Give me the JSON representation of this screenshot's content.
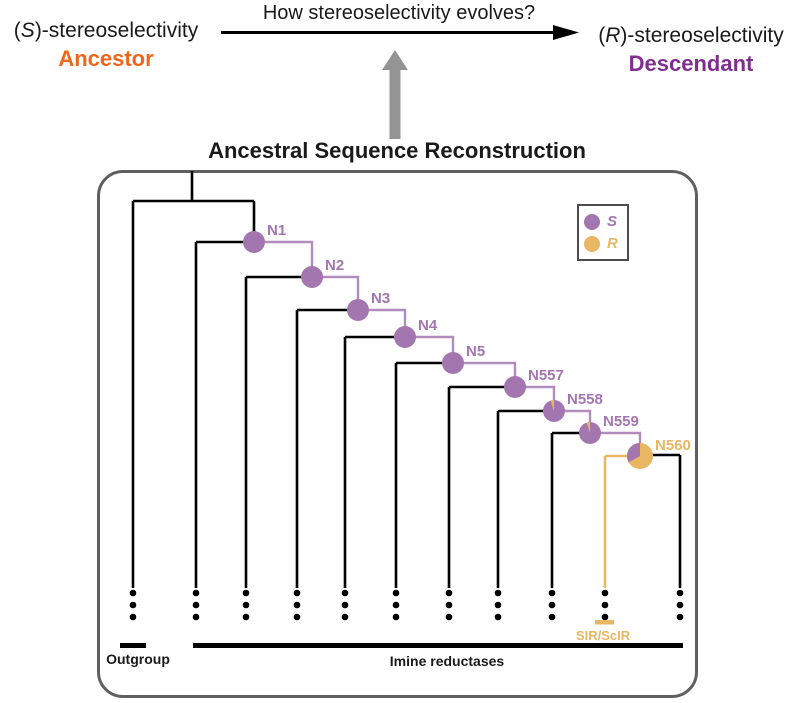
{
  "header": {
    "question": "How stereoselectivity evolves?",
    "ancestor": {
      "pre": "(",
      "italic": "S",
      "post": ")-stereoselectivity",
      "role": "Ancestor"
    },
    "descendant": {
      "pre": "(",
      "italic": "R",
      "post": ")-stereoselectivity",
      "role": "Descendant"
    },
    "method": "Ancestral Sequence Reconstruction"
  },
  "legend": {
    "items": [
      {
        "label": "S",
        "color": "#A476AF"
      },
      {
        "label": "R",
        "color": "#E7B763"
      }
    ]
  },
  "tree": {
    "nodes": [
      {
        "label": "N1",
        "s": 1.0,
        "r": 0.0
      },
      {
        "label": "N2",
        "s": 1.0,
        "r": 0.0
      },
      {
        "label": "N3",
        "s": 1.0,
        "r": 0.0
      },
      {
        "label": "N4",
        "s": 1.0,
        "r": 0.0
      },
      {
        "label": "N5",
        "s": 1.0,
        "r": 0.0
      },
      {
        "label": "N557",
        "s": 1.0,
        "r": 0.0
      },
      {
        "label": "N558",
        "s": 0.95,
        "r": 0.05
      },
      {
        "label": "N559",
        "s": 0.95,
        "r": 0.05
      },
      {
        "label": "N560",
        "s": 0.33,
        "r": 0.67
      }
    ],
    "groups": {
      "outgroup": "Outgroup",
      "imine": "Imine reductases",
      "sir": "SIR/ScIR"
    }
  },
  "colors": {
    "ancestor_orange": "#F2661B",
    "descendant_purple": "#7F2F90",
    "node_purple": "#A476AF",
    "line_purple": "#B18CBC",
    "gold": "#E7B763",
    "tree_black": "#000000",
    "gray_arrow": "#949494",
    "box_border": "#5F5F5F"
  }
}
